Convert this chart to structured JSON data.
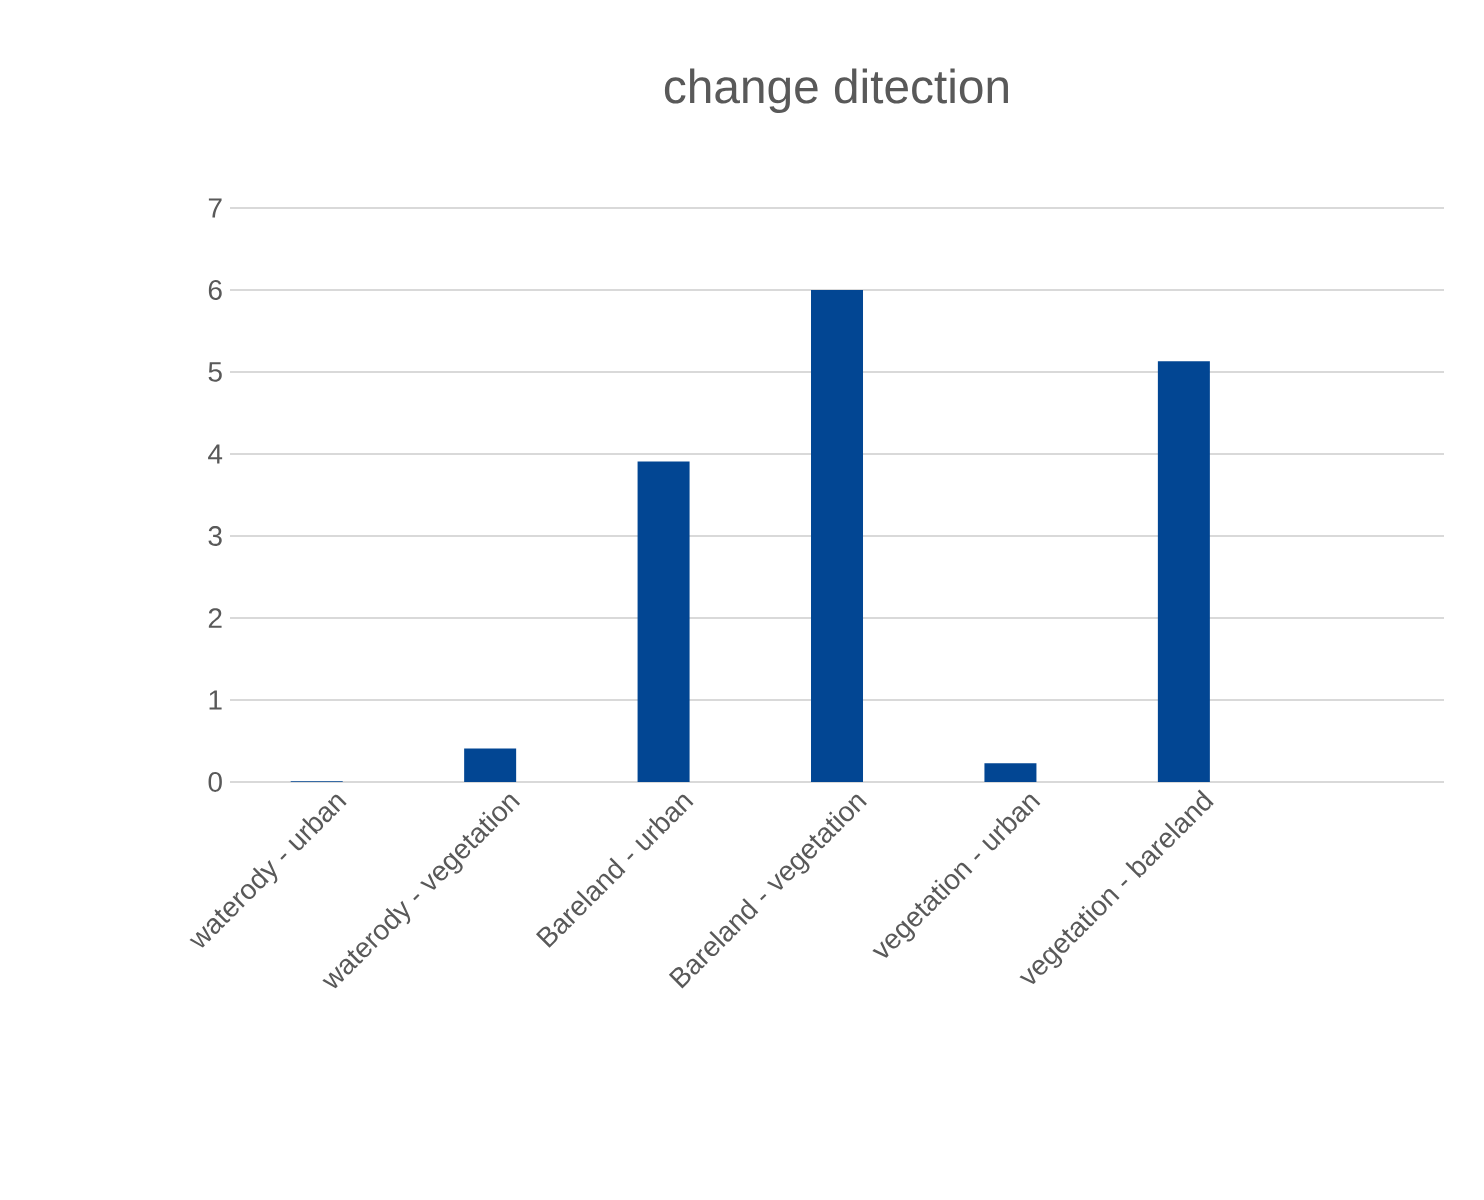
{
  "chart_data": {
    "type": "bar",
    "title": "change ditection",
    "categories": [
      "waterody - urban",
      "waterody - vegetation",
      "Bareland - urban",
      "Bareland - vegetation",
      "vegetation - urban",
      "vegetation - bareland",
      null
    ],
    "values": [
      0.01,
      0.41,
      3.91,
      6.0,
      0.23,
      5.13,
      null
    ],
    "color": "#024693",
    "ylim": [
      0,
      7
    ],
    "yticks": [
      0,
      1,
      2,
      3,
      4,
      5,
      6,
      7
    ],
    "grid": "y"
  }
}
